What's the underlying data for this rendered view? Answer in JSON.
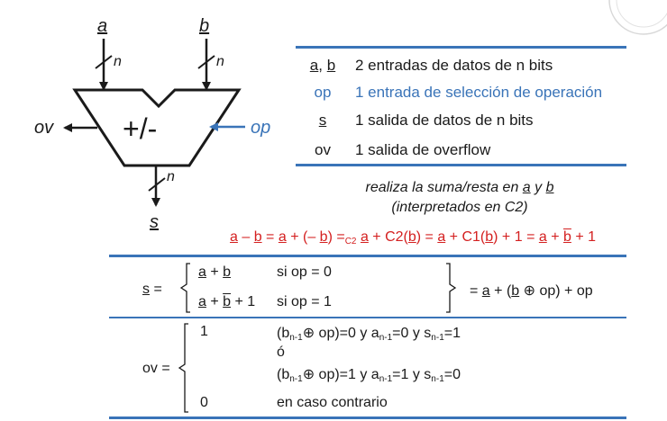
{
  "diagram": {
    "input_a": "a",
    "input_b": "b",
    "width_a": "n",
    "width_b": "n",
    "width_s": "n",
    "op_symbol": "+/-",
    "output_ov": "ov",
    "input_op": "op",
    "output_s": "s"
  },
  "signals_table": [
    {
      "key_a": "a",
      "sep": ", ",
      "key_b": "b",
      "desc": "2 entradas de datos de n bits"
    },
    {
      "key": "op",
      "desc": "1 entrada de selección de operación"
    },
    {
      "key": "s",
      "desc": "1 salida de datos de n bits"
    },
    {
      "key": "ov",
      "desc": "1 salida de overflow"
    }
  ],
  "note": {
    "line1_pre": "realiza la suma/resta en ",
    "line1_a": "a",
    "line1_mid": " y ",
    "line1_b": "b",
    "line2": "(interpretados en C2)"
  },
  "red_eq": {
    "t1": "a",
    "t2": " – ",
    "t3": "b",
    "t4": " = ",
    "t5": "a",
    "t6": " + (– ",
    "t7": "b",
    "t8": ") =",
    "t9": "C2",
    "t10": " ",
    "t11": "a",
    "t12": " + C2(",
    "t13": "b",
    "t14": ") = ",
    "t15": "a",
    "t16": " + C1(",
    "t17": "b",
    "t18": ") + 1 = ",
    "t19": "a",
    "t20": " + ",
    "t21": "b",
    "t22": " + 1"
  },
  "s_def": {
    "label": "s",
    "eq": " =",
    "case1_a": "a",
    "case1_op": " + ",
    "case1_b": "b",
    "case1_cond": "si op = 0",
    "case2_a": "a",
    "case2_op": " + ",
    "case2_b": "b",
    "case2_tail": " + 1",
    "case2_cond": "si op = 1",
    "result_pre": "= ",
    "result_a": "a",
    "result_mid": " + (",
    "result_b": "b",
    "result_xor": " ⊕ op) + op"
  },
  "ov_def": {
    "label": "ov =",
    "val1": "1",
    "cond1_pre": "(b",
    "cond1_s1": "n-1",
    "cond1_m1": "⊕ op)=0 y a",
    "cond1_s2": "n-1",
    "cond1_m2": "=0 y s",
    "cond1_s3": "n-1",
    "cond1_end": "=1",
    "or_word": "ó",
    "cond2_pre": "(b",
    "cond2_s1": "n-1",
    "cond2_m1": "⊕ op)=1 y a",
    "cond2_s2": "n-1",
    "cond2_m2": "=1 y s",
    "cond2_s3": "n-1",
    "cond2_end": "=0",
    "val0": "0",
    "cond0": "en caso contrario"
  },
  "colors": {
    "accent": "#3a74b8",
    "red": "#d42020",
    "text": "#1a1a1a"
  }
}
